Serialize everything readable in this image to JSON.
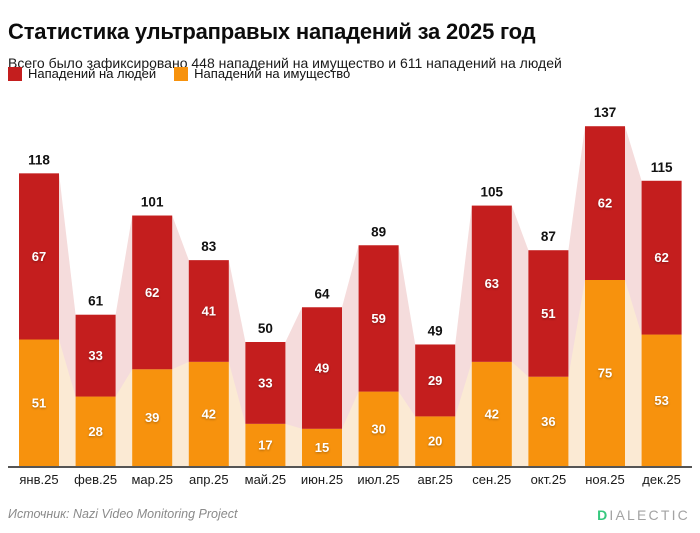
{
  "header": {
    "title": "Статистика ультраправых нападений за 2025 год",
    "subtitle": "Всего было зафиксировано 448 нападений на имущество и 611 нападений на людей"
  },
  "legend": [
    {
      "label": "Нападений на людей",
      "color": "#C41E1E"
    },
    {
      "label": "Нападений на имущество",
      "color": "#F7920D"
    }
  ],
  "chart_data": {
    "type": "bar",
    "stacked": true,
    "title": "Статистика ультраправых нападений за 2025 год",
    "categories": [
      "янв.25",
      "фев.25",
      "мар.25",
      "апр.25",
      "май.25",
      "июн.25",
      "июл.25",
      "авг.25",
      "сен.25",
      "окт.25",
      "ноя.25",
      "дек.25"
    ],
    "series": [
      {
        "name": "Нападений на людей",
        "position": "top",
        "color": "#C41E1E",
        "band_color": "#F5DCDC",
        "values": [
          67,
          33,
          62,
          41,
          33,
          49,
          59,
          29,
          63,
          51,
          62,
          62
        ],
        "total": 611
      },
      {
        "name": "Нападений на имущество",
        "position": "bottom",
        "color": "#F7920D",
        "band_color": "#FBEAD4",
        "values": [
          51,
          28,
          39,
          42,
          17,
          15,
          30,
          20,
          42,
          36,
          75,
          53
        ],
        "total": 448
      }
    ],
    "totals": [
      118,
      61,
      101,
      83,
      50,
      64,
      89,
      49,
      105,
      87,
      137,
      115
    ],
    "ylim": [
      0,
      137
    ],
    "grid": false,
    "legend_position": "top-left",
    "value_labels": "white-inside-segments",
    "total_labels": "black-above-bars",
    "axis_line_color": "#555555"
  },
  "footer": {
    "source": "Источник: Nazi Video Monitoring Project",
    "logo": {
      "first_letter": "D",
      "rest": "IALECTIC",
      "first_color": "#36C87E",
      "rest_color": "#A3A3A3"
    }
  }
}
